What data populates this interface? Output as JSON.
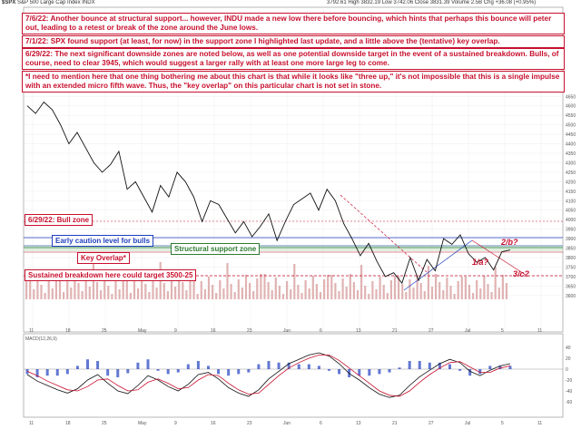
{
  "header": {
    "ticker": "$SPX",
    "name": "S&P 500 Large Cap Index",
    "exchange": "INDX",
    "stats_line": "3792.61  High 3832.19  Low 3742.06  Close 3831.39  Volume 2.5B  Chg +36.08 (+0.95%)"
  },
  "notes": {
    "n1": "7/6/22:  Another bounce at structural support... however, INDU made a new low there before bouncing, which hints that perhaps this bounce will peter out, leading to a retest or break of the zone around the June lows.",
    "n2": "7/1/22:  SPX found support (at least, for now) in the support zone I highlighted last update, and a little above the (tentative) key overlap.",
    "n3": "6/29/22:  The next significant downside zones are noted below, as well as one potential downside target in the event of a sustained breakdown. Bulls, of course, need to clear 3945, which would suggest a larger rally with at least one more large leg to come.",
    "n4": "*I need to mention here that one thing bothering me about this chart is that while it looks like \"three up,\" it's not impossible that this is a single impulse with an extended micro fifth wave.  Thus, the \"key overlap\" on this particular chart is not set in stone."
  },
  "zones": {
    "bull": "6/29/22:  Bull zone",
    "caution": "Early caution level for bulls",
    "structural": "Structural support zone",
    "overlap": "Key Overlap*",
    "breakdown": "Sustained breakdown here could target 3500-25"
  },
  "wave_labels": {
    "w2b": "2/b?",
    "w1a": "1/a?",
    "w3c": "3/c?"
  },
  "colors": {
    "price": "#111111",
    "accent": "#c8102e",
    "blue": "#1f3fbf",
    "green": "#2e7d32",
    "volume": "#d9a0a0"
  },
  "chart_data": {
    "type": "line",
    "title": "$SPX S&P 500 Large Cap Index",
    "x_tick_labels": [
      "11",
      "18",
      "25",
      "May",
      "9",
      "16",
      "23",
      "Jun",
      "6",
      "13",
      "21",
      "27",
      "Jul",
      "5",
      "11"
    ],
    "y_tick_labels": [
      "4650",
      "4600",
      "4550",
      "4500",
      "4450",
      "4400",
      "4350",
      "4300",
      "4250",
      "4200",
      "4150",
      "4100",
      "4050",
      "4000",
      "3950",
      "3900",
      "3850",
      "3800",
      "3750",
      "3700",
      "3650",
      "3600"
    ],
    "ylim": [
      3580,
      4680
    ],
    "price_points": [
      4600,
      4560,
      4620,
      4580,
      4500,
      4400,
      4460,
      4380,
      4300,
      4250,
      4290,
      4360,
      4160,
      4200,
      4120,
      4040,
      4180,
      4120,
      4250,
      4200,
      4120,
      3990,
      4100,
      4080,
      4005,
      3930,
      3990,
      3910,
      3965,
      4030,
      3890,
      3990,
      4080,
      4110,
      4140,
      4050,
      4160,
      4100,
      3980,
      3900,
      3810,
      3875,
      3780,
      3700,
      3720,
      3665,
      3800,
      3680,
      3790,
      3730,
      3900,
      3870,
      3920,
      3820,
      3775,
      3800,
      3735,
      3830,
      3840
    ],
    "macd_tick_labels": [
      "40",
      "20",
      "0",
      "-20",
      "-40",
      "-60"
    ],
    "macd_label": "MACD(12,26,9)",
    "macd_line": [
      -10,
      -22,
      -30,
      -38,
      -44,
      -36,
      -20,
      -10,
      -26,
      -40,
      -45,
      -30,
      -12,
      -20,
      -32,
      -40,
      -28,
      -10,
      -6,
      -18,
      -34,
      -44,
      -50,
      -38,
      -18,
      -4,
      10,
      18,
      26,
      30,
      24,
      10,
      -8,
      -20,
      -34,
      -46,
      -52,
      -48,
      -30,
      -14,
      -2,
      10,
      18,
      12,
      -4,
      -12,
      -2,
      6,
      10
    ],
    "signal_line": [
      -4,
      -12,
      -22,
      -30,
      -38,
      -40,
      -32,
      -20,
      -18,
      -30,
      -40,
      -38,
      -24,
      -18,
      -26,
      -36,
      -34,
      -20,
      -10,
      -12,
      -26,
      -38,
      -46,
      -44,
      -28,
      -12,
      2,
      12,
      20,
      26,
      26,
      16,
      2,
      -12,
      -26,
      -40,
      -48,
      -50,
      -40,
      -24,
      -10,
      2,
      12,
      14,
      4,
      -6,
      -6,
      2,
      6
    ]
  }
}
